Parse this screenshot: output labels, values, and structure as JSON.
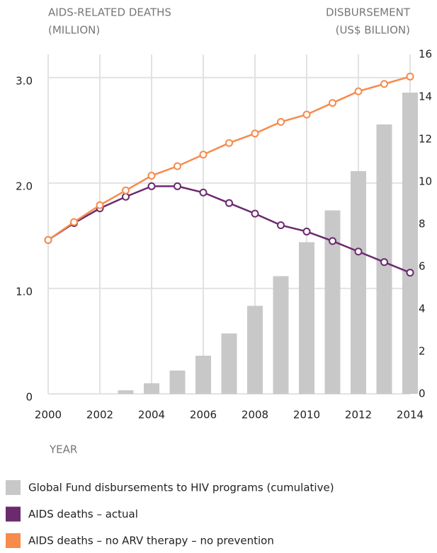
{
  "chart_data": {
    "type": "combo",
    "ylabel": [
      "AIDS-RELATED DEATHS",
      "(MILLION)"
    ],
    "y2label": [
      "DISBURSEMENT",
      "(US$ BILLION)"
    ],
    "xlabel": "YEAR",
    "x": [
      2000,
      2001,
      2002,
      2003,
      2004,
      2005,
      2006,
      2007,
      2008,
      2009,
      2010,
      2011,
      2012,
      2013,
      2014
    ],
    "xlim": [
      2000,
      2014
    ],
    "xticks": [
      2000,
      2002,
      2004,
      2006,
      2008,
      2010,
      2012,
      2014
    ],
    "ylim": [
      0,
      3.22
    ],
    "yticks": [
      0,
      {
        "value": 1,
        "label": "1.0"
      },
      {
        "value": 2,
        "label": "2.0"
      },
      {
        "value": 3,
        "label": "3.0"
      }
    ],
    "y2lim": [
      0,
      16
    ],
    "y2ticks": [
      0,
      2,
      4,
      6,
      8,
      10,
      12,
      14,
      16
    ],
    "grid": true,
    "legend": "bottom",
    "series": [
      {
        "name": "Global Fund disbursements to HIV programs (cumulative)",
        "type": "bar",
        "axis": "y2",
        "color": "#c8c8c8",
        "values": [
          0,
          0,
          0,
          0.17,
          0.5,
          1.1,
          1.8,
          2.85,
          4.15,
          5.55,
          7.15,
          8.65,
          10.5,
          12.7,
          14.2
        ]
      },
      {
        "name": "AIDS deaths – actual",
        "type": "line",
        "color": "#6b2a6e",
        "values": [
          1.46,
          1.62,
          1.76,
          1.87,
          1.97,
          1.97,
          1.91,
          1.81,
          1.71,
          1.6,
          1.54,
          1.45,
          1.35,
          1.25,
          1.15
        ]
      },
      {
        "name": "AIDS deaths – no ARV therapy – no prevention",
        "type": "line",
        "color": "#f68b4c",
        "values": [
          1.46,
          1.63,
          1.79,
          1.93,
          2.07,
          2.16,
          2.27,
          2.38,
          2.47,
          2.58,
          2.65,
          2.76,
          2.87,
          2.94,
          3.01
        ]
      }
    ]
  }
}
